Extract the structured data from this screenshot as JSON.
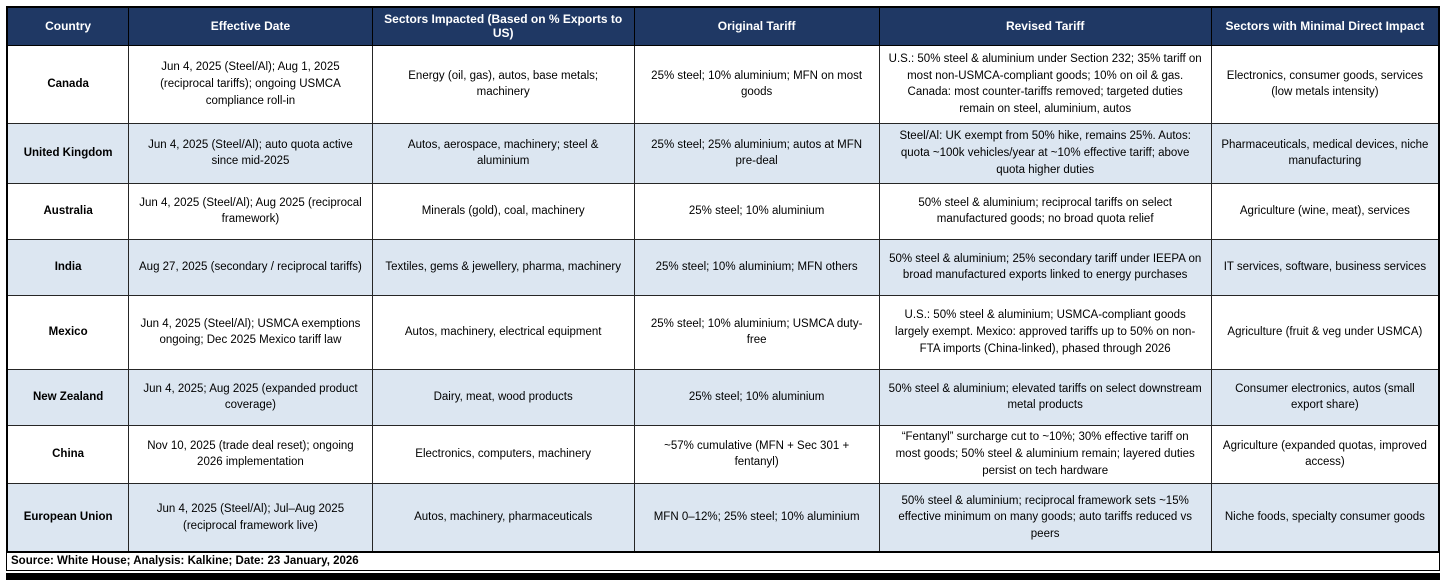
{
  "table": {
    "columns": [
      {
        "label": "Country"
      },
      {
        "label": "Effective Date"
      },
      {
        "label": "Sectors Impacted (Based on % Exports to US)"
      },
      {
        "label": "Original Tariff"
      },
      {
        "label": "Revised Tariff"
      },
      {
        "label": "Sectors with Minimal Direct Impact"
      }
    ],
    "rows": [
      {
        "country": "Canada",
        "effective_date": "Jun 4, 2025 (Steel/Al); Aug 1, 2025 (reciprocal tariffs); ongoing USMCA compliance roll-in",
        "sectors_impacted": "Energy (oil, gas), autos, base metals; machinery",
        "original_tariff": "25% steel; 10% aluminium; MFN on most goods",
        "revised_tariff": "U.S.: 50% steel & aluminium under Section 232; 35% tariff on most non-USMCA-compliant goods; 10% on oil & gas. Canada: most counter-tariffs removed; targeted duties remain on steel, aluminium, autos",
        "minimal_impact": "Electronics, consumer goods, services (low metals intensity)"
      },
      {
        "country": "United Kingdom",
        "effective_date": "Jun 4, 2025 (Steel/Al); auto quota active since mid-2025",
        "sectors_impacted": "Autos, aerospace, machinery; steel & aluminium",
        "original_tariff": "25% steel; 25% aluminium; autos at MFN pre-deal",
        "revised_tariff": "Steel/Al: UK exempt from 50% hike, remains 25%. Autos: quota ~100k vehicles/year at ~10% effective tariff; above quota higher duties",
        "minimal_impact": "Pharmaceuticals, medical devices, niche manufacturing"
      },
      {
        "country": "Australia",
        "effective_date": "Jun 4, 2025 (Steel/Al); Aug 2025 (reciprocal framework)",
        "sectors_impacted": "Minerals (gold), coal, machinery",
        "original_tariff": "25% steel; 10% aluminium",
        "revised_tariff": "50% steel & aluminium; reciprocal tariffs on select manufactured goods; no broad quota relief",
        "minimal_impact": "Agriculture (wine, meat), services"
      },
      {
        "country": "India",
        "effective_date": "Aug 27, 2025 (secondary / reciprocal tariffs)",
        "sectors_impacted": "Textiles, gems & jewellery, pharma, machinery",
        "original_tariff": "25% steel; 10% aluminium; MFN others",
        "revised_tariff": "50% steel & aluminium; 25% secondary tariff under IEEPA on broad manufactured exports linked to energy purchases",
        "minimal_impact": "IT services, software, business services"
      },
      {
        "country": "Mexico",
        "effective_date": "Jun 4, 2025 (Steel/Al); USMCA exemptions ongoing; Dec 2025 Mexico tariff law",
        "sectors_impacted": "Autos, machinery, electrical equipment",
        "original_tariff": "25% steel; 10% aluminium; USMCA duty-free",
        "revised_tariff": "U.S.: 50% steel & aluminium; USMCA-compliant goods largely exempt. Mexico: approved tariffs up to 50% on non-FTA imports (China-linked), phased through 2026",
        "minimal_impact": "Agriculture (fruit & veg under USMCA)"
      },
      {
        "country": "New Zealand",
        "effective_date": "Jun 4, 2025; Aug 2025 (expanded product coverage)",
        "sectors_impacted": "Dairy, meat, wood products",
        "original_tariff": "25% steel; 10% aluminium",
        "revised_tariff": "50% steel & aluminium; elevated tariffs on select downstream metal products",
        "minimal_impact": "Consumer electronics, autos (small export share)"
      },
      {
        "country": "China",
        "effective_date": "Nov 10, 2025 (trade deal reset); ongoing 2026 implementation",
        "sectors_impacted": "Electronics, computers, machinery",
        "original_tariff": "~57% cumulative (MFN + Sec 301 + fentanyl)",
        "revised_tariff": "“Fentanyl” surcharge cut to ~10%; 30% effective tariff on most goods; 50% steel & aluminium remain; layered duties persist on tech hardware",
        "minimal_impact": "Agriculture (expanded quotas, improved access)"
      },
      {
        "country": "European Union",
        "effective_date": "Jun 4, 2025 (Steel/Al); Jul–Aug 2025 (reciprocal framework live)",
        "sectors_impacted": "Autos, machinery, pharmaceuticals",
        "original_tariff": "MFN 0–12%; 25% steel; 10% aluminium",
        "revised_tariff": "50% steel & aluminium; reciprocal framework sets ~15% effective minimum on many goods; auto tariffs reduced vs peers",
        "minimal_impact": "Niche foods, specialty consumer goods"
      }
    ],
    "footer": "Source: White House; Analysis: Kalkine; Date: 23 January, 2026",
    "colors": {
      "header_bg": "#1F3864",
      "header_text": "#FFFFFF",
      "row_bg": "#FFFFFF",
      "row_alt_bg": "#DCE6F1",
      "border": "#000000"
    }
  }
}
